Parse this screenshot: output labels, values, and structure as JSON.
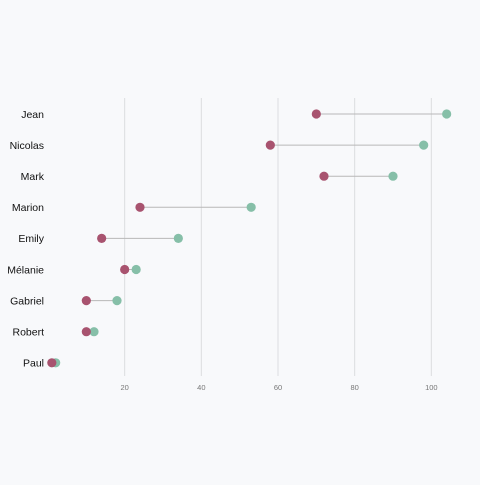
{
  "chart_data": {
    "type": "dumbbell",
    "title": "",
    "xlabel": "",
    "ylabel": "",
    "categories": [
      "Jean",
      "Nicolas",
      "Mark",
      "Marion",
      "Emily",
      "Mélanie",
      "Gabriel",
      "Robert",
      "Paul"
    ],
    "series": [
      {
        "values": [
          70,
          58,
          72,
          24,
          14,
          20,
          10,
          10,
          1
        ],
        "color": "#a8536f"
      },
      {
        "values": [
          104,
          98,
          90,
          53,
          34,
          23,
          18,
          12,
          2
        ],
        "color": "#86bfa8"
      }
    ],
    "xlim": [
      0,
      108
    ],
    "xticks": [
      20,
      40,
      60,
      80,
      100
    ],
    "grid": "vertical",
    "legend": "none"
  }
}
